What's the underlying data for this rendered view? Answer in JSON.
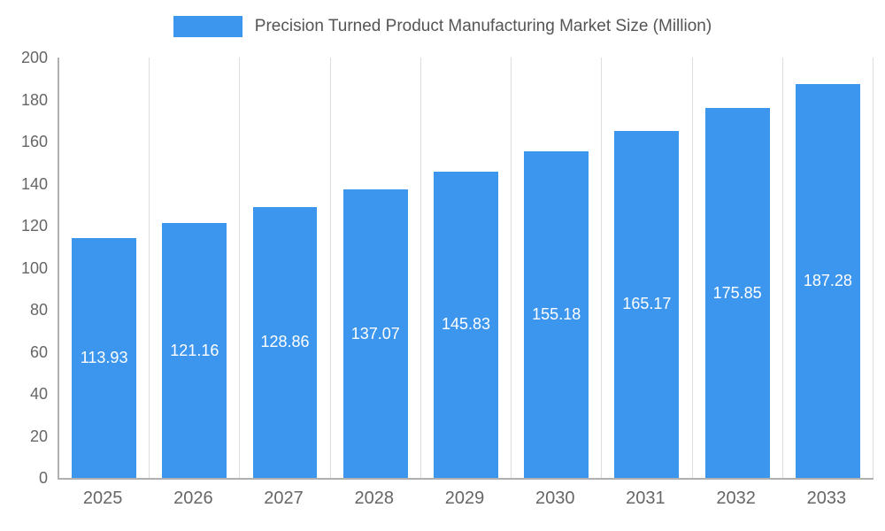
{
  "chart_data": {
    "type": "bar",
    "title": "Precision Turned Product Manufacturing Market Size (Million)",
    "categories": [
      "2025",
      "2026",
      "2027",
      "2028",
      "2029",
      "2030",
      "2031",
      "2032",
      "2033"
    ],
    "values": [
      113.93,
      121.16,
      128.86,
      137.07,
      145.83,
      155.18,
      165.17,
      175.85,
      187.28
    ],
    "xlabel": "",
    "ylabel": "",
    "ylim": [
      0,
      200
    ],
    "ytick_step": 20,
    "legend_position": "top",
    "grid": "vertical-only",
    "colors": {
      "bar": "#3d96ee",
      "bar_value_label": "#ffffff",
      "axis_line": "#b0b0b0",
      "grid_line": "#dddddd",
      "tick_text": "#666666",
      "legend_text": "#555555"
    }
  }
}
